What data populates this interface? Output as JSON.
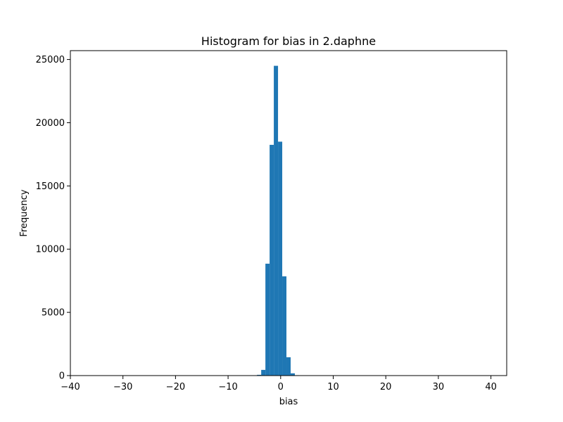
{
  "chart_data": {
    "type": "bar",
    "title": "Histogram for bias in 2.daphne",
    "xlabel": "bias",
    "ylabel": "Frequency",
    "xlim": [
      -40,
      43
    ],
    "ylim": [
      0,
      25700
    ],
    "x_ticks": [
      -40,
      -30,
      -20,
      -10,
      0,
      10,
      20,
      30,
      40
    ],
    "y_ticks": [
      0,
      5000,
      10000,
      15000,
      20000,
      25000
    ],
    "bar_color": "#1f77b4",
    "grid": false,
    "bins": [
      {
        "x0": -4.5,
        "x1": -3.7,
        "value": 60
      },
      {
        "x0": -3.7,
        "x1": -2.9,
        "value": 450
      },
      {
        "x0": -2.9,
        "x1": -2.1,
        "value": 8850
      },
      {
        "x0": -2.1,
        "x1": -1.3,
        "value": 18250
      },
      {
        "x0": -1.3,
        "x1": -0.5,
        "value": 24500
      },
      {
        "x0": -0.5,
        "x1": 0.3,
        "value": 18500
      },
      {
        "x0": 0.3,
        "x1": 1.1,
        "value": 7850
      },
      {
        "x0": 1.1,
        "x1": 1.9,
        "value": 1450
      },
      {
        "x0": 1.9,
        "x1": 2.7,
        "value": 180
      },
      {
        "x0": 2.7,
        "x1": 3.5,
        "value": 30
      }
    ]
  }
}
